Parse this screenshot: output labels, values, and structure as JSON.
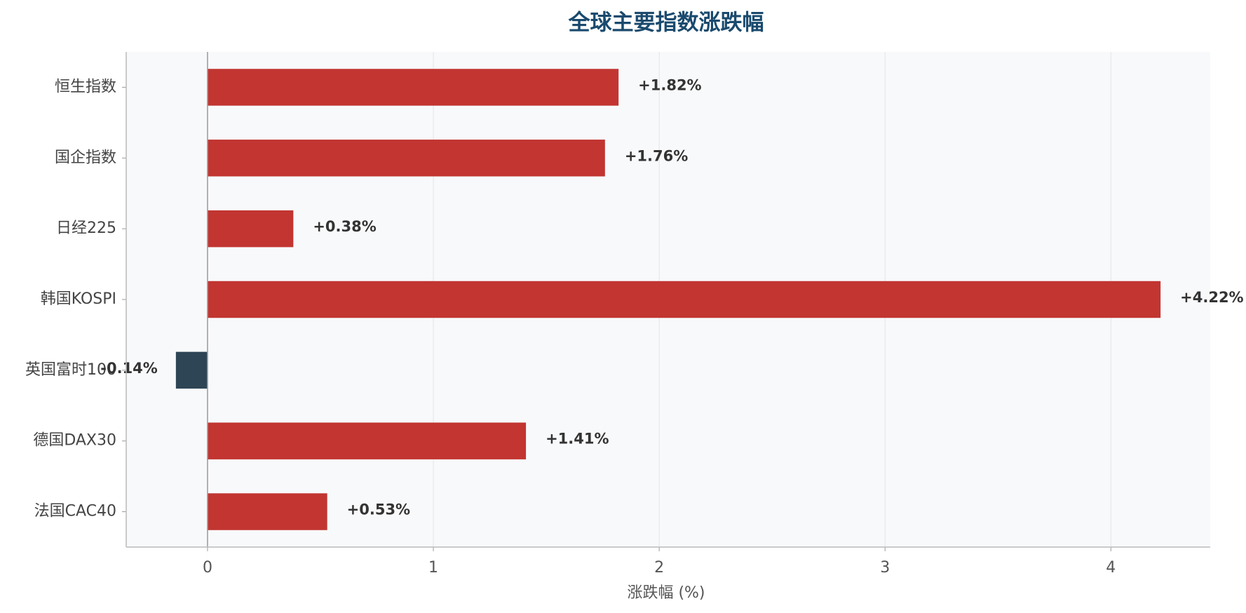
{
  "chart_data": {
    "type": "barh",
    "title": "全球主要指数涨跌幅",
    "xlabel": "涨跌幅 (%)",
    "categories": [
      "恒生指数",
      "国企指数",
      "日经225",
      "韩国KOSPI",
      "英国富时100",
      "德国DAX30",
      "法国CAC40"
    ],
    "values": [
      1.82,
      1.76,
      0.38,
      4.22,
      -0.14,
      1.41,
      0.53
    ],
    "value_labels": [
      "+1.82%",
      "+1.76%",
      "+0.38%",
      "+4.22%",
      "-0.14%",
      "+1.41%",
      "+0.53%"
    ],
    "colors": [
      "#c23531",
      "#c23531",
      "#c23531",
      "#c23531",
      "#2e4556",
      "#c23531",
      "#c23531"
    ],
    "xlim": [
      -0.36,
      4.44
    ],
    "xticks": [
      0,
      1,
      2,
      3,
      4
    ],
    "grid": true
  }
}
